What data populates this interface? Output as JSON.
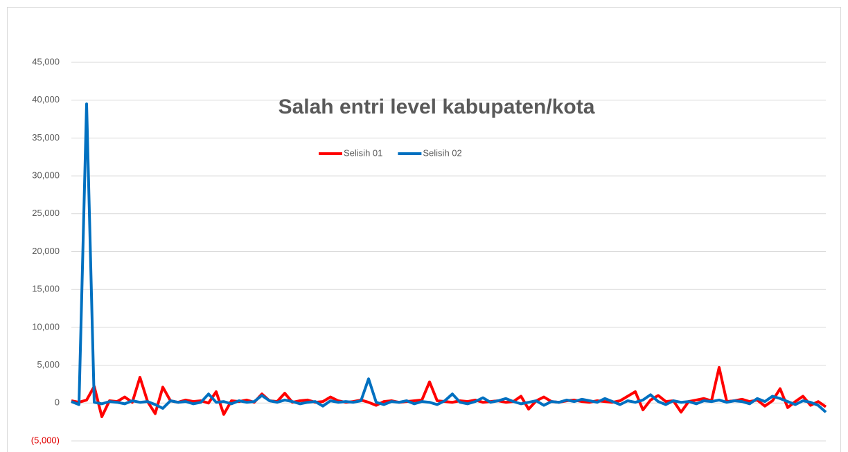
{
  "chart_data": {
    "type": "line",
    "title": "Salah entri level kabupaten/kota",
    "legend": "top",
    "ylim": [
      -5000,
      45000
    ],
    "yticks": [
      {
        "value": -5000,
        "label": "(5,000)"
      },
      0,
      {
        "value": 5000,
        "label": "5,000"
      },
      {
        "value": 10000,
        "label": "10,000"
      },
      {
        "value": 15000,
        "label": "15,000"
      },
      {
        "value": 20000,
        "label": "20,000"
      },
      {
        "value": 25000,
        "label": "25,000"
      },
      {
        "value": 30000,
        "label": "30,000"
      },
      {
        "value": 35000,
        "label": "35,000"
      },
      {
        "value": 40000,
        "label": "40,000"
      },
      {
        "value": 45000,
        "label": "45,000"
      }
    ],
    "grid": true,
    "series": [
      {
        "name": "Selisih 01",
        "color": "#ff0000",
        "values": [
          300,
          100,
          400,
          2200,
          -1800,
          300,
          200,
          800,
          100,
          3400,
          200,
          -1400,
          2100,
          300,
          100,
          400,
          200,
          300,
          0,
          1500,
          -1500,
          300,
          200,
          400,
          100,
          1200,
          300,
          200,
          1300,
          100,
          300,
          400,
          100,
          200,
          800,
          300,
          100,
          200,
          400,
          100,
          -300,
          200,
          300,
          100,
          200,
          300,
          400,
          2800,
          300,
          200,
          100,
          300,
          200,
          400,
          100,
          200,
          300,
          100,
          200,
          900,
          -800,
          300,
          800,
          200,
          100,
          300,
          400,
          200,
          100,
          300,
          200,
          100,
          300,
          900,
          1500,
          -900,
          400,
          1000,
          200,
          300,
          -1200,
          200,
          400,
          600,
          300,
          4700,
          200,
          300,
          500,
          200,
          400,
          -400,
          300,
          1900,
          -600,
          200,
          900,
          -300,
          200,
          -500
        ]
      },
      {
        "name": "Selisih 02",
        "color": "#0070c0",
        "values": [
          200,
          -200,
          39500,
          100,
          -100,
          200,
          100,
          -100,
          300,
          100,
          200,
          -200,
          -700,
          300,
          100,
          200,
          -100,
          100,
          1200,
          100,
          200,
          -100,
          300,
          100,
          200,
          1000,
          300,
          100,
          400,
          200,
          -100,
          100,
          200,
          -400,
          300,
          100,
          200,
          100,
          300,
          3200,
          100,
          -200,
          200,
          100,
          300,
          -100,
          200,
          100,
          -200,
          300,
          1200,
          100,
          -100,
          200,
          700,
          100,
          300,
          600,
          200,
          -100,
          100,
          300,
          -300,
          200,
          100,
          400,
          200,
          500,
          300,
          100,
          600,
          200,
          -200,
          300,
          100,
          400,
          1100,
          200,
          -200,
          300,
          100,
          200,
          -100,
          300,
          200,
          400,
          100,
          300,
          200,
          -100,
          600,
          200,
          900,
          600,
          200,
          -200,
          300,
          100,
          -300,
          -1200
        ]
      }
    ]
  }
}
